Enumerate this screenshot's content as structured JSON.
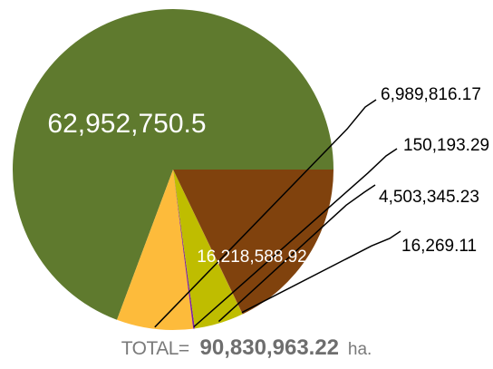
{
  "chart_data": {
    "type": "pie",
    "categories": [
      "",
      "",
      "",
      "",
      "",
      ""
    ],
    "values": [
      62952750.5,
      6989816.17,
      150193.29,
      4503345.23,
      16269.11,
      16218588.92
    ],
    "labels": [
      "62,952,750.5",
      "6,989,816.17",
      "150,193.29",
      "4,503,345.23",
      "16,269.11",
      "16,218,588.92"
    ],
    "colors": [
      "#5f7a2e",
      "#fdbb3b",
      "#7b1fa2",
      "#bfbd00",
      "#e53935",
      "#80420d"
    ],
    "title": "",
    "start_angle_deg": 0,
    "direction": "counterclockwise"
  },
  "total": {
    "prefix": "TOTAL=",
    "value": "90,830,963.22",
    "unit": "ha."
  }
}
